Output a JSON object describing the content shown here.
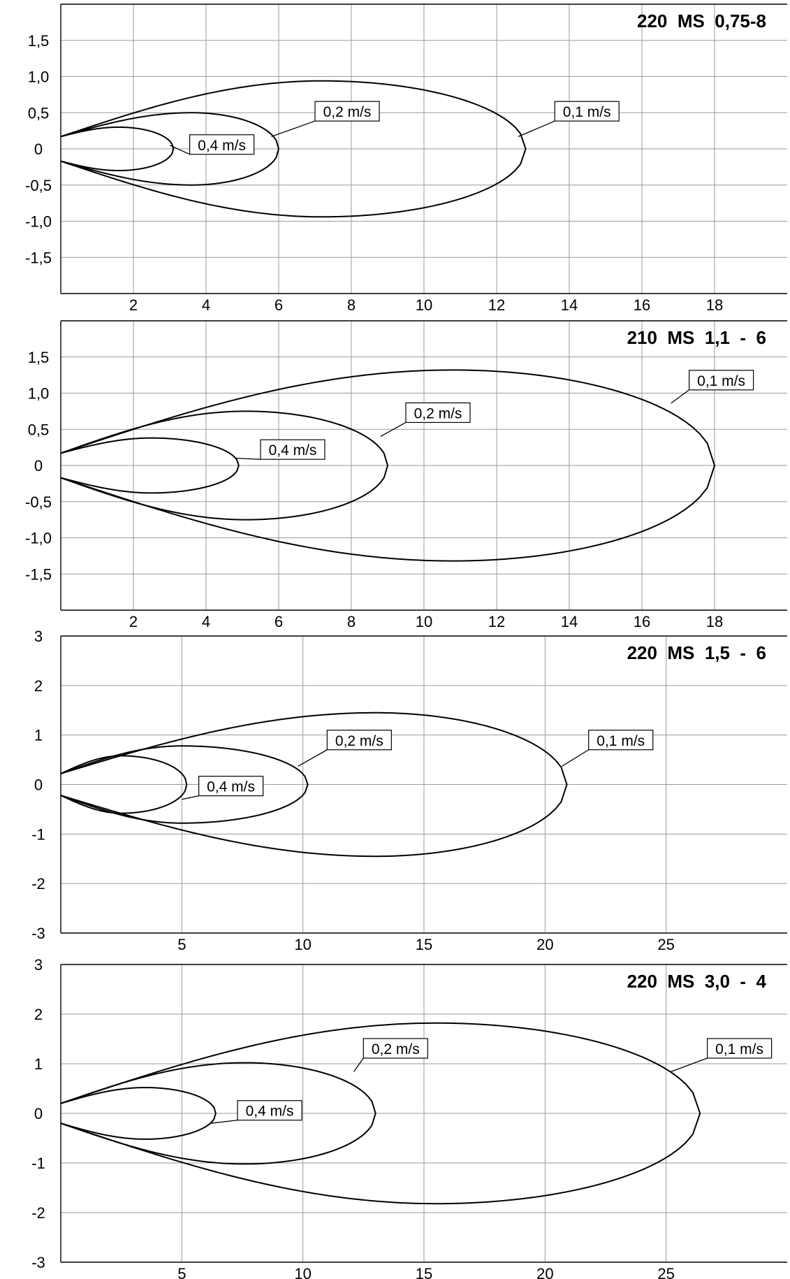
{
  "chart_data": [
    {
      "type": "line",
      "title": "220  MS  0,75-8",
      "xlim": [
        0,
        20
      ],
      "ylim": [
        -2,
        2
      ],
      "xticks": [
        2,
        4,
        6,
        8,
        10,
        12,
        14,
        16,
        18
      ],
      "xtick_labels": [
        "2",
        "4",
        "6",
        "8",
        "10",
        "12",
        "14",
        "16",
        "18"
      ],
      "yticks": [
        1.5,
        1.0,
        0.5,
        0,
        -0.5,
        -1.0,
        -1.5
      ],
      "ytick_labels": [
        "1,5",
        "1,0",
        "0,5",
        "0",
        "-0,5",
        "-1,0",
        "-1,5"
      ],
      "grid": true,
      "series": [
        {
          "name": "0,4 m/s",
          "tip": 3.1,
          "half_width": 0.3,
          "peak_x": 1.6,
          "start_half_width": 0.17,
          "label_at": [
            3.0,
            0.05
          ],
          "label_box": [
            3.55,
            0.06
          ]
        },
        {
          "name": "0,2 m/s",
          "tip": 6.0,
          "half_width": 0.5,
          "peak_x": 3.6,
          "start_half_width": 0.17,
          "label_at": [
            5.8,
            0.17
          ],
          "label_box": [
            7.0,
            0.52
          ]
        },
        {
          "name": "0,1 m/s",
          "tip": 12.8,
          "half_width": 0.94,
          "peak_x": 7.2,
          "start_half_width": 0.17,
          "label_at": [
            12.6,
            0.17
          ],
          "label_box": [
            13.6,
            0.52
          ]
        }
      ]
    },
    {
      "type": "line",
      "title": "210  MS  1,1  -  6",
      "xlim": [
        0,
        20
      ],
      "ylim": [
        -2,
        2
      ],
      "xticks": [
        2,
        4,
        6,
        8,
        10,
        12,
        14,
        16,
        18
      ],
      "xtick_labels": [
        "2",
        "4",
        "6",
        "8",
        "10",
        "12",
        "14",
        "16",
        "18"
      ],
      "yticks": [
        1.5,
        1.0,
        0.5,
        0,
        -0.5,
        -1.0,
        -1.5
      ],
      "ytick_labels": [
        "1,5",
        "1,0",
        "0,5",
        "0",
        "-0,5",
        "-1,0",
        "-1,5"
      ],
      "grid": true,
      "series": [
        {
          "name": "0,4 m/s",
          "tip": 4.9,
          "half_width": 0.38,
          "peak_x": 2.5,
          "start_half_width": 0.17,
          "label_at": [
            4.8,
            0.1
          ],
          "label_box": [
            5.5,
            0.22
          ]
        },
        {
          "name": "0,2 m/s",
          "tip": 9.0,
          "half_width": 0.75,
          "peak_x": 5.1,
          "start_half_width": 0.17,
          "label_at": [
            8.8,
            0.4
          ],
          "label_box": [
            9.5,
            0.73
          ]
        },
        {
          "name": "0,1 m/s",
          "tip": 18.0,
          "half_width": 1.32,
          "peak_x": 10.8,
          "start_half_width": 0.17,
          "label_at": [
            16.8,
            0.86
          ],
          "label_box": [
            17.3,
            1.18
          ]
        }
      ]
    },
    {
      "type": "line",
      "title": "220  MS  1,5  -  6",
      "xlim": [
        0,
        30
      ],
      "ylim": [
        -3,
        3
      ],
      "xticks": [
        5,
        10,
        15,
        20,
        25
      ],
      "xtick_labels": [
        "5",
        "10",
        "15",
        "20",
        "25"
      ],
      "yticks": [
        3,
        2,
        1,
        0,
        -1,
        -2,
        -3
      ],
      "ytick_labels": [
        "3",
        "2",
        "1",
        "0",
        "-1",
        "-2",
        "-3"
      ],
      "grid": true,
      "series": [
        {
          "name": "0,4 m/s",
          "tip": 5.2,
          "half_width": 0.58,
          "peak_x": 2.5,
          "start_half_width": 0.22,
          "label_at": [
            5.0,
            -0.3
          ],
          "label_box": [
            5.7,
            -0.03
          ]
        },
        {
          "name": "0,2 m/s",
          "tip": 10.2,
          "half_width": 0.78,
          "peak_x": 5.0,
          "start_half_width": 0.22,
          "label_at": [
            9.8,
            0.37
          ],
          "label_box": [
            11.0,
            0.9
          ]
        },
        {
          "name": "0,1 m/s",
          "tip": 20.9,
          "half_width": 1.45,
          "peak_x": 13.0,
          "start_half_width": 0.22,
          "label_at": [
            20.7,
            0.37
          ],
          "label_box": [
            21.8,
            0.9
          ]
        }
      ]
    },
    {
      "type": "line",
      "title": "220  MS  3,0  -  4",
      "xlim": [
        0,
        30
      ],
      "ylim": [
        -3,
        3
      ],
      "xticks": [
        5,
        10,
        15,
        20,
        25
      ],
      "xtick_labels": [
        "5",
        "10",
        "15",
        "20",
        "25"
      ],
      "yticks": [
        3,
        2,
        1,
        0,
        -1,
        -2,
        -3
      ],
      "ytick_labels": [
        "3",
        "2",
        "1",
        "0",
        "-1",
        "-2",
        "-3"
      ],
      "grid": true,
      "series": [
        {
          "name": "0,4 m/s",
          "tip": 6.4,
          "half_width": 0.52,
          "peak_x": 3.5,
          "start_half_width": 0.2,
          "label_at": [
            6.2,
            -0.2
          ],
          "label_box": [
            7.3,
            0.06
          ]
        },
        {
          "name": "0,2 m/s",
          "tip": 13.0,
          "half_width": 1.02,
          "peak_x": 7.6,
          "start_half_width": 0.2,
          "label_at": [
            12.1,
            0.84
          ],
          "label_box": [
            12.5,
            1.31
          ]
        },
        {
          "name": "0,1 m/s",
          "tip": 26.4,
          "half_width": 1.82,
          "peak_x": 15.5,
          "start_half_width": 0.2,
          "label_at": [
            25.2,
            0.84
          ],
          "label_box": [
            26.7,
            1.31
          ]
        }
      ]
    }
  ]
}
